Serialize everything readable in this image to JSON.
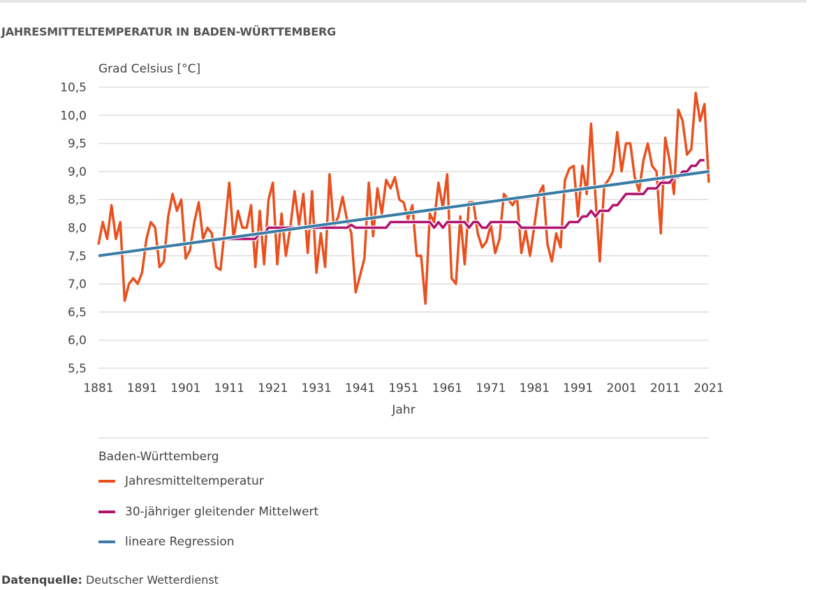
{
  "title": "JAHRESMITTELTEMPERATUR IN BADEN-WÜRTTEMBERG",
  "source_label": "Datenquelle:",
  "source_value": "Deutscher Wetterdienst",
  "chart_data": {
    "type": "line",
    "ylabel": "Grad Celsius [°C]",
    "xlabel": "Jahr",
    "ylim": [
      5.5,
      10.5
    ],
    "xlim": [
      1881,
      2021
    ],
    "yticks": [
      "5,5",
      "6,0",
      "6,5",
      "7,0",
      "7,5",
      "8,0",
      "8,5",
      "9,0",
      "9,5",
      "10,0",
      "10,5"
    ],
    "xticks": [
      "1881",
      "1891",
      "1901",
      "1911",
      "1921",
      "1931",
      "1941",
      "1951",
      "1961",
      "1971",
      "1981",
      "1991",
      "2001",
      "2011",
      "2021"
    ],
    "grid": true,
    "legend_title": "Baden-Württemberg",
    "legend_position": "bottom",
    "series": [
      {
        "name": "Jahresmitteltemperatur",
        "color": "#e8501e",
        "x_start": 1881,
        "values": [
          7.7,
          8.1,
          7.8,
          8.4,
          7.8,
          8.1,
          6.7,
          7.0,
          7.1,
          7.0,
          7.2,
          7.8,
          8.1,
          8.0,
          7.3,
          7.4,
          8.2,
          8.6,
          8.3,
          8.5,
          7.45,
          7.6,
          8.1,
          8.45,
          7.8,
          8.0,
          7.9,
          7.3,
          7.25,
          8.0,
          8.8,
          7.8,
          8.3,
          8.0,
          8.0,
          8.4,
          7.3,
          8.3,
          7.35,
          8.5,
          8.8,
          7.35,
          8.25,
          7.5,
          8.0,
          8.65,
          8.05,
          8.6,
          7.55,
          8.65,
          7.2,
          7.9,
          7.3,
          8.95,
          8.0,
          8.2,
          8.55,
          8.15,
          7.9,
          6.85,
          7.15,
          7.45,
          8.8,
          7.85,
          8.7,
          8.25,
          8.85,
          8.7,
          8.9,
          8.5,
          8.45,
          8.15,
          8.4,
          7.5,
          7.5,
          6.65,
          8.25,
          8.1,
          8.8,
          8.35,
          8.95,
          7.1,
          7.0,
          8.2,
          7.35,
          8.45,
          8.45,
          7.9,
          7.65,
          7.75,
          8.05,
          7.55,
          7.8,
          8.6,
          8.5,
          8.4,
          8.55,
          7.55,
          7.95,
          7.5,
          8.05,
          8.6,
          8.75,
          7.7,
          7.4,
          7.9,
          7.65,
          8.85,
          9.05,
          9.1,
          8.2,
          9.1,
          8.6,
          9.85,
          8.55,
          7.4,
          8.75,
          8.85,
          9.0,
          9.7,
          9.0,
          9.5,
          9.5,
          8.9,
          8.65,
          9.2,
          9.5,
          9.1,
          9.0,
          7.9,
          9.6,
          9.2,
          8.6,
          10.1,
          9.9,
          9.3,
          9.4,
          10.4,
          9.9,
          10.2,
          8.8
        ]
      },
      {
        "name": "30-jähriger gleitender Mittelwert",
        "color": "#b0126e",
        "x_start": 1910,
        "values": [
          7.8,
          7.8,
          7.8,
          7.8,
          7.8,
          7.8,
          7.8,
          7.8,
          7.9,
          7.9,
          8.0,
          8.0,
          8.0,
          8.0,
          8.0,
          8.0,
          8.0,
          8.0,
          8.0,
          8.0,
          8.0,
          8.0,
          8.0,
          8.0,
          8.0,
          8.0,
          8.0,
          8.0,
          8.0,
          8.05,
          8.0,
          8.0,
          8.0,
          8.0,
          8.0,
          8.0,
          8.0,
          8.0,
          8.1,
          8.1,
          8.1,
          8.1,
          8.1,
          8.1,
          8.1,
          8.1,
          8.1,
          8.1,
          8.0,
          8.1,
          8.0,
          8.1,
          8.1,
          8.1,
          8.1,
          8.1,
          8.0,
          8.1,
          8.1,
          8.0,
          8.0,
          8.1,
          8.1,
          8.1,
          8.1,
          8.1,
          8.1,
          8.1,
          8.0,
          8.0,
          8.0,
          8.0,
          8.0,
          8.0,
          8.0,
          8.0,
          8.0,
          8.0,
          8.0,
          8.1,
          8.1,
          8.1,
          8.2,
          8.2,
          8.3,
          8.2,
          8.3,
          8.3,
          8.3,
          8.4,
          8.4,
          8.5,
          8.6,
          8.6,
          8.6,
          8.6,
          8.6,
          8.7,
          8.7,
          8.7,
          8.8,
          8.8,
          8.8,
          8.9,
          8.9,
          9.0,
          9.0,
          9.1,
          9.1,
          9.2,
          9.2
        ]
      },
      {
        "name": "lineare Regression",
        "color": "#3a7ca5",
        "x": [
          1881,
          2021
        ],
        "values": [
          7.5,
          9.0
        ]
      }
    ]
  }
}
